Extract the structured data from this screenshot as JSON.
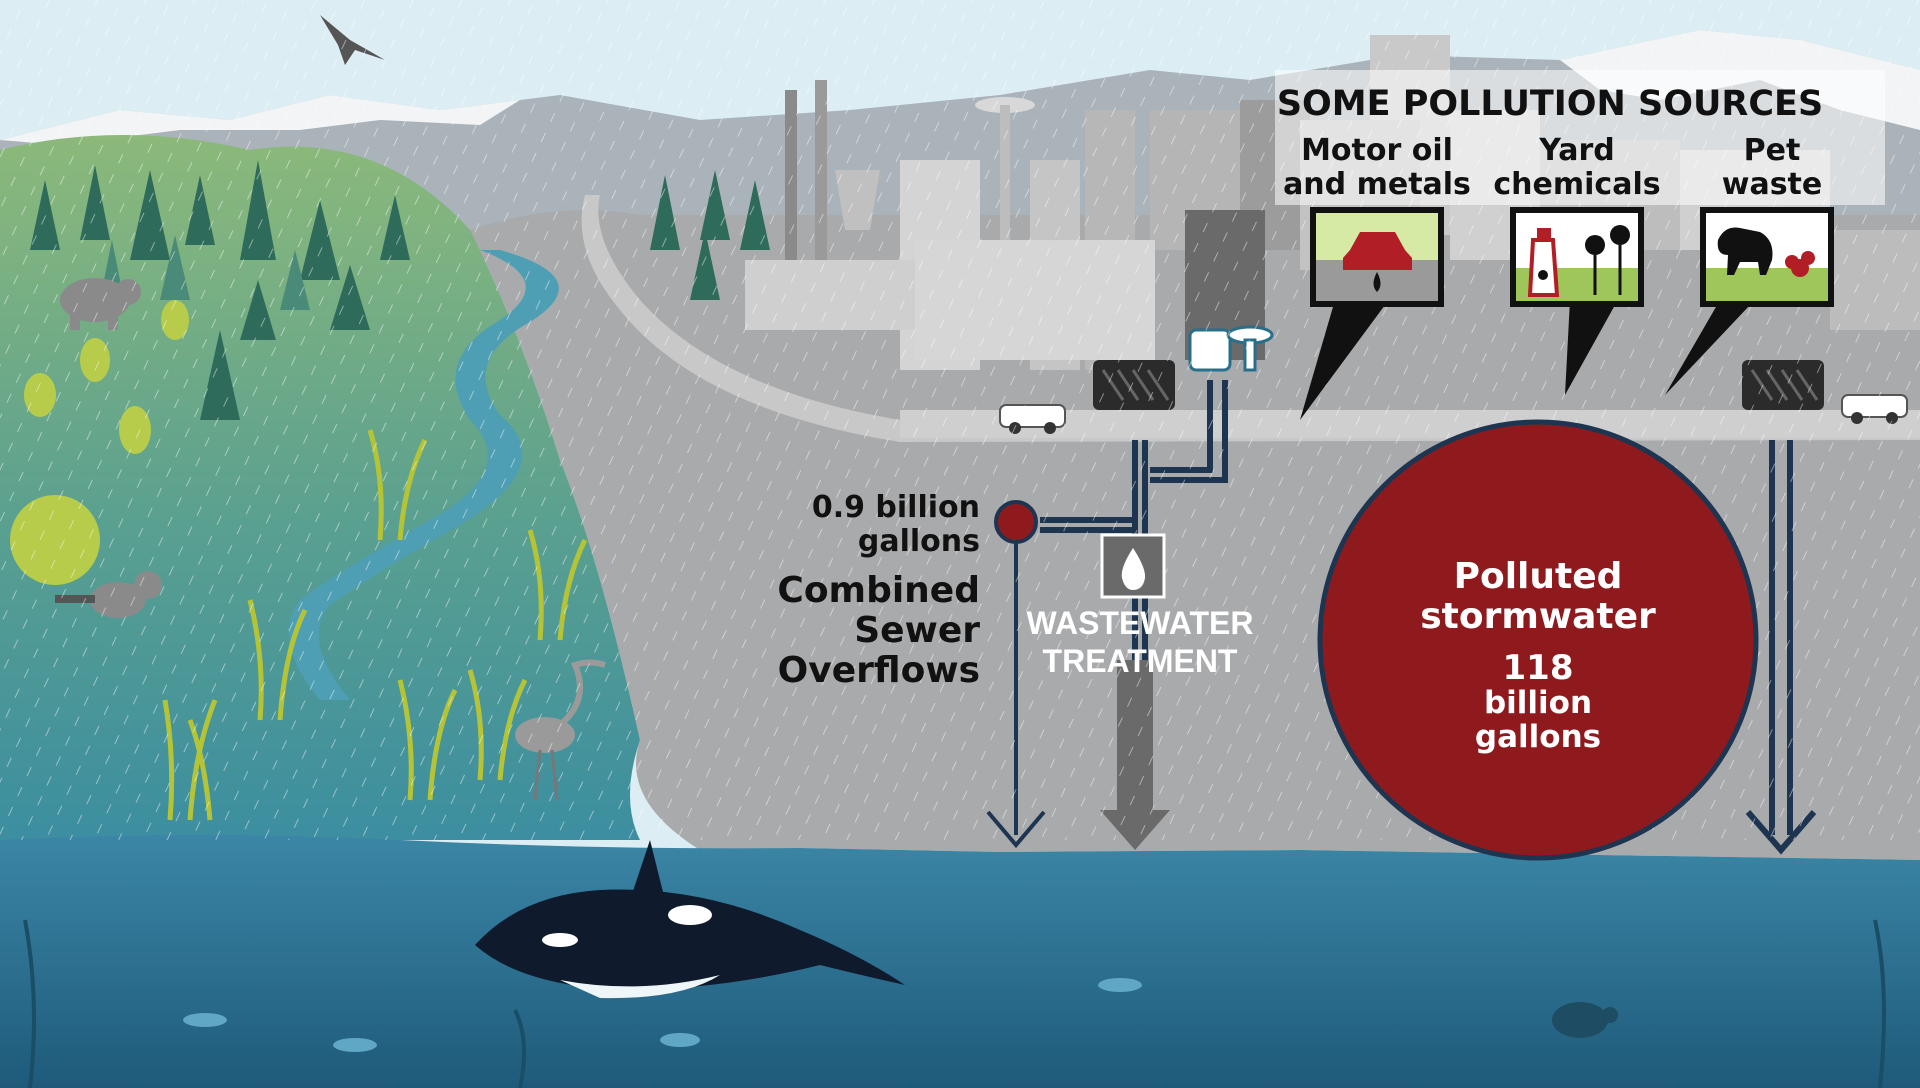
{
  "sources": {
    "heading": "SOME POLLUTION SOURCES",
    "items": [
      {
        "label_line1": "Motor oil",
        "label_line2": "and metals",
        "icon": "car-oil-icon"
      },
      {
        "label_line1": "Yard",
        "label_line2": "chemicals",
        "icon": "chemical-spray-icon"
      },
      {
        "label_line1": "Pet",
        "label_line2": "waste",
        "icon": "dog-waste-icon"
      }
    ]
  },
  "cso": {
    "amount_line1": "0.9 billion",
    "amount_line2": "gallons",
    "label_line1": "Combined",
    "label_line2": "Sewer",
    "label_line3": "Overflows"
  },
  "treatment": {
    "label_line1": "WASTEWATER",
    "label_line2": "TREATMENT",
    "icon": "water-drop-icon"
  },
  "stormwater": {
    "label_line1": "Polluted",
    "label_line2": "stormwater",
    "amount_line1": "118",
    "amount_line2": "billion",
    "amount_line3": "gallons"
  },
  "colors": {
    "sky": "#dceef3",
    "land_gray": "#a8a9ab",
    "water": "#2e7393",
    "deep_water": "#1f5e7e",
    "forest_green": "#7fae6e",
    "polluted_red": "#8f1a1e",
    "pipe_navy": "#1d3550"
  }
}
